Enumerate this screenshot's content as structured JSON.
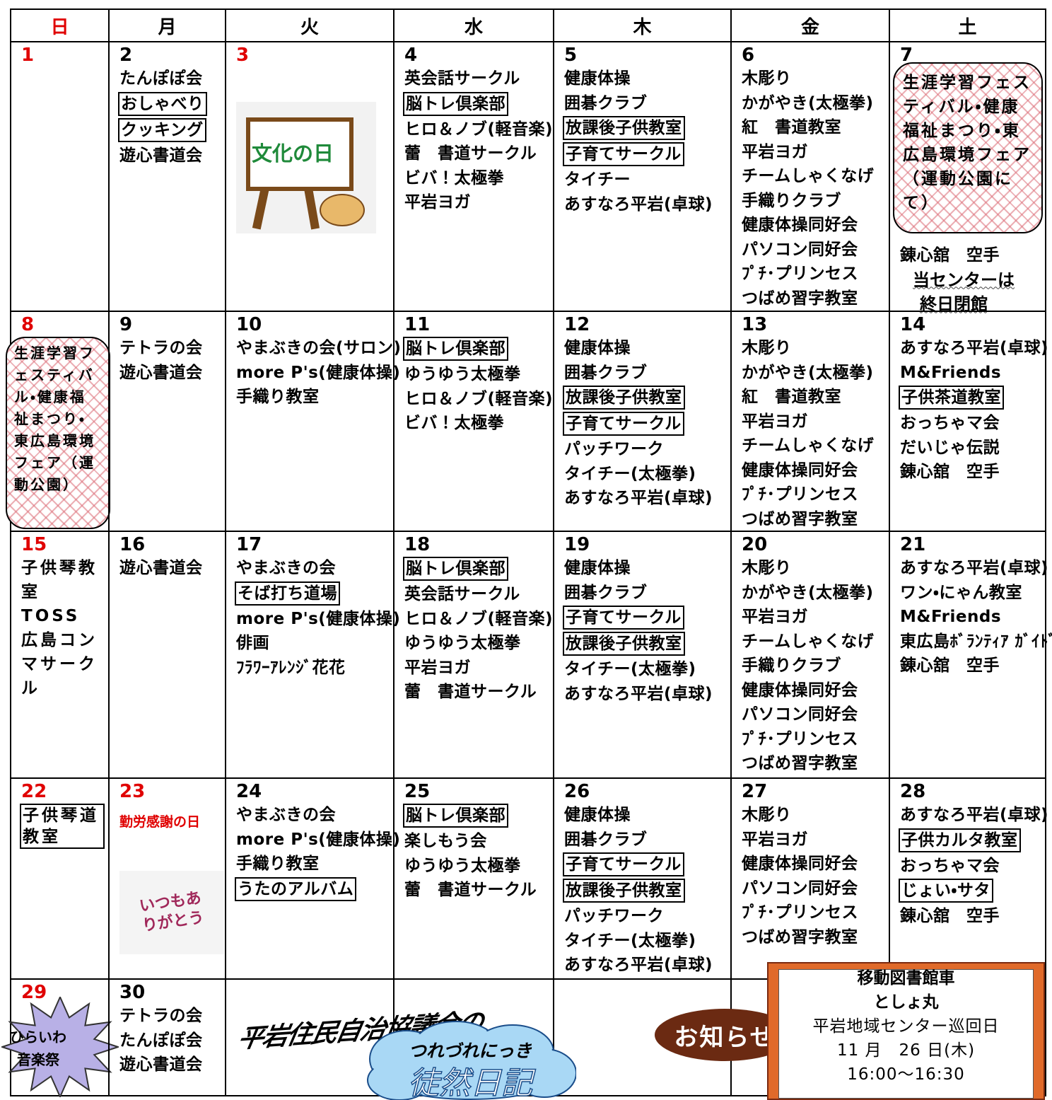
{
  "weekdays": [
    "日",
    "月",
    "火",
    "水",
    "木",
    "金",
    "土"
  ],
  "weeks": [
    [
      {
        "day": 1,
        "items": []
      },
      {
        "day": 2,
        "items": [
          "たんぽぽ会",
          {
            "text": "おしゃべり",
            "boxed": true
          },
          {
            "text": "クッキング",
            "boxed": true
          },
          "遊心書道会"
        ]
      },
      {
        "day": 3,
        "holiday": true,
        "items": [],
        "image_text": "文化の日"
      },
      {
        "day": 4,
        "items": [
          "英会話サークル",
          {
            "text": "脳トレ倶楽部",
            "boxed": true
          },
          "ヒロ＆ノブ(軽音楽)",
          "蕾　書道サークル",
          "ビバ！太極拳",
          "平岩ヨガ"
        ]
      },
      {
        "day": 5,
        "items": [
          "健康体操",
          "囲碁クラブ",
          {
            "text": "放課後子供教室",
            "boxed": true
          },
          {
            "text": "子育てサークル",
            "boxed": true
          },
          "タイチー",
          "あすなろ平岩(卓球)"
        ]
      },
      {
        "day": 6,
        "items": [
          "木彫り",
          "かがやき(太極拳)",
          "紅　書道教室",
          "平岩ヨガ",
          "チームしゃくなげ",
          "手織りクラブ",
          "健康体操同好会",
          "パソコン同好会",
          "ﾌﾟﾁ･プリンセス",
          "つばめ習字教室"
        ]
      },
      {
        "day": 7,
        "event": "生涯学習フェスティバル・健康福祉まつり・東広島環境フェア（運動公園にて）",
        "items": [
          "錬心舘　空手"
        ],
        "notice": [
          "当センターは",
          "終日閉館"
        ]
      }
    ],
    [
      {
        "day": 8,
        "event": "生涯学習フェスティバル・健康福祉まつり・東広島環境フェア（運動公園）",
        "items": []
      },
      {
        "day": 9,
        "items": [
          "テトラの会",
          "遊心書道会"
        ]
      },
      {
        "day": 10,
        "items": [
          "やまぶきの会(サロン)",
          "more P's(健康体操)",
          "手織り教室"
        ]
      },
      {
        "day": 11,
        "items": [
          {
            "text": "脳トレ倶楽部",
            "boxed": true
          },
          "ゆうゆう太極拳",
          "ヒロ＆ノブ(軽音楽)",
          "ビバ！太極拳"
        ]
      },
      {
        "day": 12,
        "items": [
          "健康体操",
          "囲碁クラブ",
          {
            "text": "放課後子供教室",
            "boxed": true
          },
          {
            "text": "子育てサークル",
            "boxed": true
          },
          "パッチワーク",
          "タイチー(太極拳)",
          "あすなろ平岩(卓球)"
        ]
      },
      {
        "day": 13,
        "items": [
          "木彫り",
          "かがやき(太極拳)",
          "紅　書道教室",
          "平岩ヨガ",
          "チームしゃくなげ",
          "健康体操同好会",
          "ﾌﾟﾁ･プリンセス",
          "つばめ習字教室"
        ]
      },
      {
        "day": 14,
        "items": [
          "あすなろ平岩(卓球)",
          "M&Friends",
          {
            "text": "子供茶道教室",
            "boxed": true
          },
          "おっちゃマ会",
          "だいじゃ伝説",
          "錬心舘　空手"
        ]
      }
    ],
    [
      {
        "day": 15,
        "items": [
          "子供琴教室",
          "TOSS　広島コンマサークル"
        ]
      },
      {
        "day": 16,
        "items": [
          "遊心書道会"
        ]
      },
      {
        "day": 17,
        "items": [
          "やまぶきの会",
          {
            "text": "そば打ち道場",
            "boxed": true
          },
          "more P's(健康体操)",
          "俳画",
          "ﾌﾗﾜｰｱﾚﾝｼﾞ花花"
        ]
      },
      {
        "day": 18,
        "items": [
          {
            "text": "脳トレ倶楽部",
            "boxed": true
          },
          "英会話サークル",
          "ヒロ＆ノブ(軽音楽)",
          "ゆうゆう太極拳",
          "平岩ヨガ",
          "蕾　書道サークル"
        ]
      },
      {
        "day": 19,
        "items": [
          "健康体操",
          "囲碁クラブ",
          {
            "text": "子育てサークル",
            "boxed": true
          },
          {
            "text": "放課後子供教室",
            "boxed": true
          },
          "タイチー(太極拳)",
          "あすなろ平岩(卓球)"
        ]
      },
      {
        "day": 20,
        "items": [
          "木彫り",
          "かがやき(太極拳)",
          "平岩ヨガ",
          "チームしゃくなげ",
          "手織りクラブ",
          "健康体操同好会",
          "パソコン同好会",
          "ﾌﾟﾁ･プリンセス",
          "つばめ習字教室"
        ]
      },
      {
        "day": 21,
        "items": [
          "あすなろ平岩(卓球)",
          "ワン・にゃん教室",
          "M&Friends",
          "東広島ﾎﾞﾗﾝﾃｨｱ ｶﾞｲﾄﾞの会",
          "錬心舘　空手"
        ]
      }
    ],
    [
      {
        "day": 22,
        "items": [
          {
            "text": "子供琴道教室",
            "boxed": true
          }
        ]
      },
      {
        "day": 23,
        "holiday": true,
        "holiday_name": "勤労感謝の日",
        "items": [],
        "image_text": "いつもありがとう"
      },
      {
        "day": 24,
        "items": [
          "やまぶきの会",
          "more P's(健康体操)",
          "手織り教室",
          {
            "text": "うたのアルバム",
            "boxed": true
          }
        ]
      },
      {
        "day": 25,
        "items": [
          {
            "text": "脳トレ倶楽部",
            "boxed": true
          },
          "楽しもう会",
          "ゆうゆう太極拳",
          "蕾　書道サークル"
        ]
      },
      {
        "day": 26,
        "items": [
          "健康体操",
          "囲碁クラブ",
          {
            "text": "子育てサークル",
            "boxed": true
          },
          {
            "text": "放課後子供教室",
            "boxed": true
          },
          "パッチワーク",
          "タイチー(太極拳)",
          "あすなろ平岩(卓球)"
        ]
      },
      {
        "day": 27,
        "items": [
          "木彫り",
          "平岩ヨガ",
          "健康体操同好会",
          "パソコン同好会",
          "ﾌﾟﾁ･プリンセス",
          "つばめ習字教室"
        ]
      },
      {
        "day": 28,
        "items": [
          "あすなろ平岩(卓球)",
          {
            "text": "子供カルタ教室",
            "boxed": true
          },
          "おっちゃマ会",
          {
            "text": "じょい・サタ",
            "boxed": true
          },
          "錬心舘　空手"
        ]
      }
    ],
    [
      {
        "day": 29,
        "burst": [
          "ひらいわ",
          "音楽祭"
        ],
        "items": []
      },
      {
        "day": 30,
        "items": [
          "テトラの会",
          "たんぽぽ会",
          "遊心書道会"
        ]
      }
    ]
  ],
  "footer": {
    "association": "平岩住民自治協議会の",
    "diary_kana": "つれづれにっき",
    "diary": "徒然日記",
    "notice": "お知らせ",
    "library": [
      "移動図書館車",
      "としょ丸",
      "平岩地域センター巡回日",
      "11 月　26 日(木)",
      "16:00～16:30"
    ]
  }
}
